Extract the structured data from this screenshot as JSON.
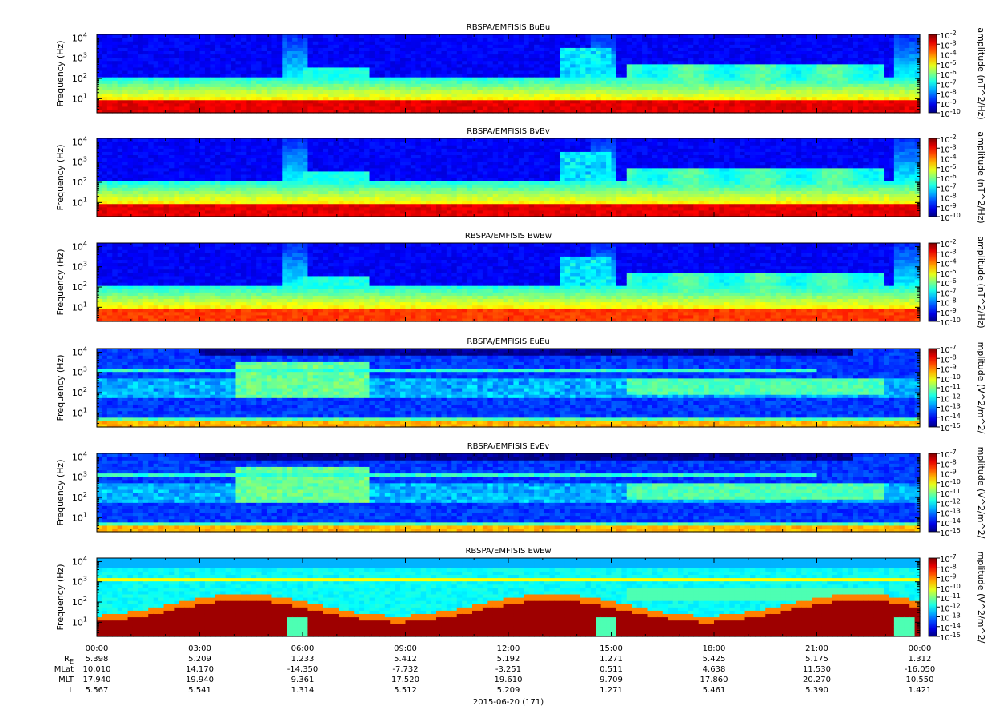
{
  "chart_data": {
    "type": "heatmap",
    "panels": [
      {
        "title": "RBSPA/EMFISIS  BuBu",
        "ylabel": "Frequency (Hz)",
        "yscale": "log",
        "ylim": [
          2,
          15000
        ],
        "yticks": [
          {
            "base": "10",
            "exp": "1"
          },
          {
            "base": "10",
            "exp": "2"
          },
          {
            "base": "10",
            "exp": "3"
          },
          {
            "base": "10",
            "exp": "4"
          }
        ],
        "colorbar_label": "amplitude (nT^2/Hz)",
        "colorbar_ticks": [
          "-2",
          "-3",
          "-4",
          "-5",
          "-6",
          "-7",
          "-8",
          "-9",
          "-10"
        ],
        "colorbar_range_exp": [
          -10,
          -2
        ],
        "kind": "B"
      },
      {
        "title": "RBSPA/EMFISIS  BvBv",
        "ylabel": "Frequency (Hz)",
        "yscale": "log",
        "ylim": [
          2,
          15000
        ],
        "yticks": [
          {
            "base": "10",
            "exp": "1"
          },
          {
            "base": "10",
            "exp": "2"
          },
          {
            "base": "10",
            "exp": "3"
          },
          {
            "base": "10",
            "exp": "4"
          }
        ],
        "colorbar_label": "amplitude (nT^2/Hz)",
        "colorbar_ticks": [
          "-2",
          "-3",
          "-4",
          "-5",
          "-6",
          "-7",
          "-8",
          "-9",
          "-10"
        ],
        "colorbar_range_exp": [
          -10,
          -2
        ],
        "kind": "B"
      },
      {
        "title": "RBSPA/EMFISIS  BwBw",
        "ylabel": "Frequency (Hz)",
        "yscale": "log",
        "ylim": [
          2,
          15000
        ],
        "yticks": [
          {
            "base": "10",
            "exp": "1"
          },
          {
            "base": "10",
            "exp": "2"
          },
          {
            "base": "10",
            "exp": "3"
          },
          {
            "base": "10",
            "exp": "4"
          }
        ],
        "colorbar_label": "amplitude (nT^2/Hz)",
        "colorbar_ticks": [
          "-2",
          "-3",
          "-4",
          "-5",
          "-6",
          "-7",
          "-8",
          "-9",
          "-10"
        ],
        "colorbar_range_exp": [
          -10,
          -2
        ],
        "kind": "Bw"
      },
      {
        "title": "RBSPA/EMFISIS  EuEu",
        "ylabel": "Frequency (Hz)",
        "yscale": "log",
        "ylim": [
          2,
          15000
        ],
        "yticks": [
          {
            "base": "10",
            "exp": "1"
          },
          {
            "base": "10",
            "exp": "2"
          },
          {
            "base": "10",
            "exp": "3"
          },
          {
            "base": "10",
            "exp": "4"
          }
        ],
        "colorbar_label": "mplitude (V^2/m^2/",
        "colorbar_ticks": [
          "-7",
          "-8",
          "-9",
          "-10",
          "-11",
          "-12",
          "-13",
          "-14",
          "-15"
        ],
        "colorbar_range_exp": [
          -15,
          -7
        ],
        "kind": "E"
      },
      {
        "title": "RBSPA/EMFISIS  EvEv",
        "ylabel": "Frequency (Hz)",
        "yscale": "log",
        "ylim": [
          2,
          15000
        ],
        "yticks": [
          {
            "base": "10",
            "exp": "1"
          },
          {
            "base": "10",
            "exp": "2"
          },
          {
            "base": "10",
            "exp": "3"
          },
          {
            "base": "10",
            "exp": "4"
          }
        ],
        "colorbar_label": "mplitude (V^2/m^2/",
        "colorbar_ticks": [
          "-7",
          "-8",
          "-9",
          "-10",
          "-11",
          "-12",
          "-13",
          "-14",
          "-15"
        ],
        "colorbar_range_exp": [
          -15,
          -7
        ],
        "kind": "E"
      },
      {
        "title": "RBSPA/EMFISIS  EwEw",
        "ylabel": "Frequency (Hz)",
        "yscale": "log",
        "ylim": [
          2,
          15000
        ],
        "yticks": [
          {
            "base": "10",
            "exp": "1"
          },
          {
            "base": "10",
            "exp": "2"
          },
          {
            "base": "10",
            "exp": "3"
          },
          {
            "base": "10",
            "exp": "4"
          }
        ],
        "colorbar_label": "mplitude (V^2/m^2/",
        "colorbar_ticks": [
          "-7",
          "-8",
          "-9",
          "-10",
          "-11",
          "-12",
          "-13",
          "-14",
          "-15"
        ],
        "colorbar_range_exp": [
          -15,
          -7
        ],
        "kind": "Ew"
      }
    ],
    "xaxis": {
      "tick_labels": [
        "00:00",
        "03:00",
        "06:00",
        "09:00",
        "12:00",
        "15:00",
        "18:00",
        "21:00",
        "00:00"
      ],
      "xlim_hours": [
        0,
        24
      ],
      "date_label": "2015-06-20 (171)"
    },
    "ephemeris": {
      "rows": [
        {
          "label": "R",
          "sub": "E",
          "values": [
            "5.398",
            "5.209",
            "1.233",
            "5.412",
            "5.192",
            "1.271",
            "5.425",
            "5.175",
            "1.312"
          ]
        },
        {
          "label": "MLat",
          "values": [
            "10.010",
            "14.170",
            "-14.350",
            "-7.732",
            "-3.251",
            "0.511",
            "4.638",
            "11.530",
            "-16.050"
          ]
        },
        {
          "label": "MLT",
          "values": [
            "17.940",
            "19.940",
            "9.361",
            "17.520",
            "19.610",
            "9.709",
            "17.860",
            "20.270",
            "10.550"
          ]
        },
        {
          "label": "L",
          "values": [
            "5.567",
            "5.541",
            "1.314",
            "5.512",
            "5.209",
            "1.271",
            "5.461",
            "5.390",
            "1.421"
          ]
        }
      ]
    }
  }
}
